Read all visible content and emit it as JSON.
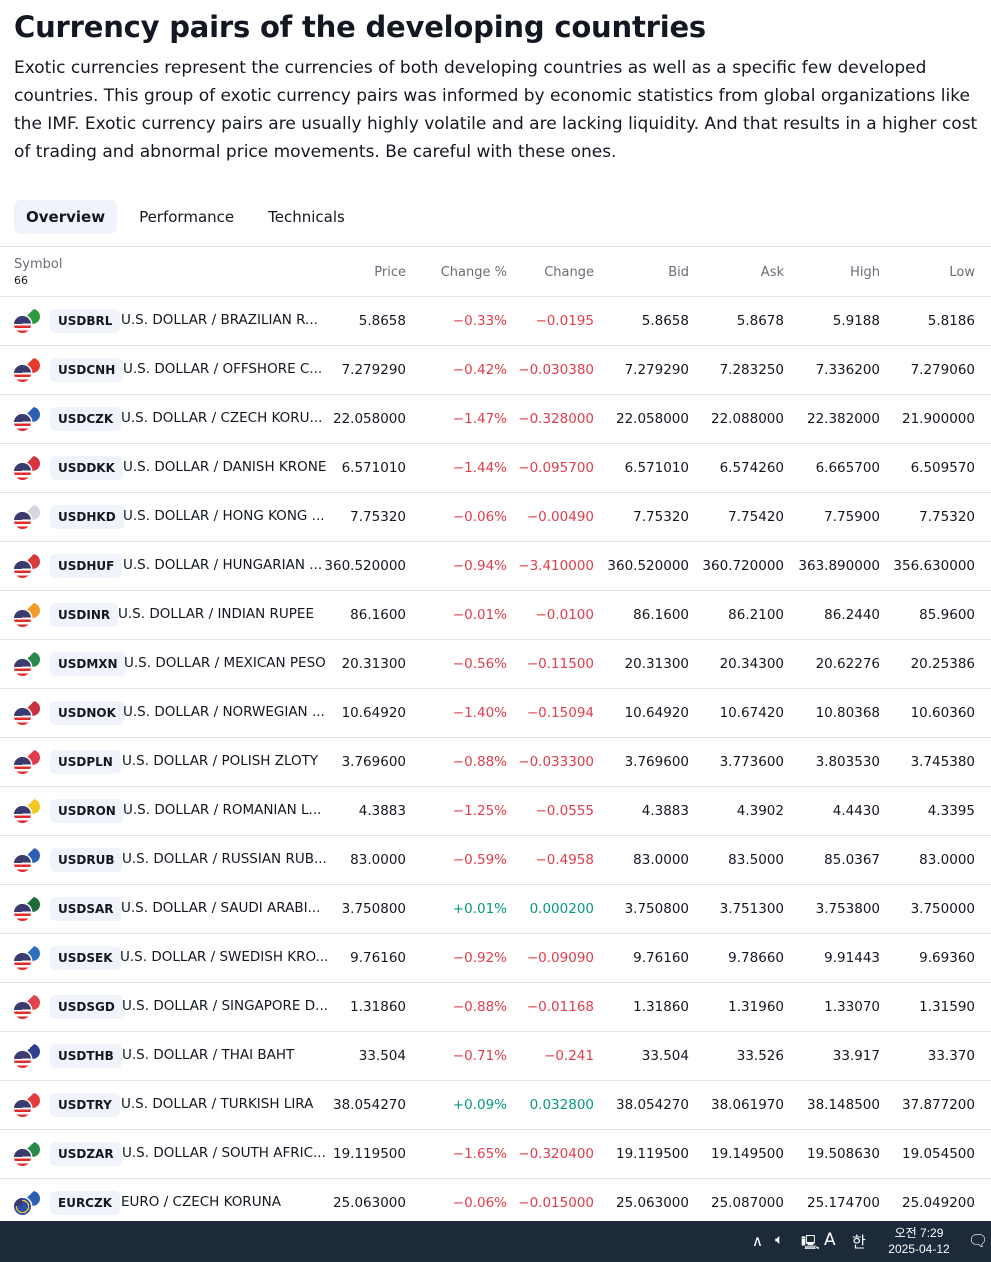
{
  "page": {
    "title": "Currency pairs of the developing countries",
    "description": "Exotic currencies represent the currencies of both developing countries as well as a specific few developed countries. This group of exotic currency pairs was informed by economic statistics from global organizations like the IMF. Exotic currency pairs are usually highly volatile and are lacking liquidity. And that results in a higher cost of trading and abnormal price movements. Be careful with these ones."
  },
  "tabs": [
    {
      "label": "Overview"
    },
    {
      "label": "Performance"
    },
    {
      "label": "Technicals"
    }
  ],
  "table": {
    "headers": {
      "symbol": "Symbol",
      "count": "66",
      "price": "Price",
      "change_pct": "Change %",
      "change": "Change",
      "bid": "Bid",
      "ask": "Ask",
      "high": "High",
      "low": "Low"
    },
    "rows": [
      {
        "ticker": "USDBRL",
        "name": "U.S. DOLLAR / BRAZILIAN R...",
        "price": "5.8658",
        "change_pct": "−0.33%",
        "change": "−0.0195",
        "bid": "5.8658",
        "ask": "5.8678",
        "high": "5.9188",
        "low": "5.8186",
        "dir": "neg",
        "flag_color": "#2a9a3f"
      },
      {
        "ticker": "USDCNH",
        "name": "U.S. DOLLAR / OFFSHORE C...",
        "price": "7.279290",
        "change_pct": "−0.42%",
        "change": "−0.030380",
        "bid": "7.279290",
        "ask": "7.283250",
        "high": "7.336200",
        "low": "7.279060",
        "dir": "neg",
        "flag_color": "#e63a2e"
      },
      {
        "ticker": "USDCZK",
        "name": "U.S. DOLLAR / CZECH KORU...",
        "price": "22.058000",
        "change_pct": "−1.47%",
        "change": "−0.328000",
        "bid": "22.058000",
        "ask": "22.088000",
        "high": "22.382000",
        "low": "21.900000",
        "dir": "neg",
        "flag_color": "#2d5fb5"
      },
      {
        "ticker": "USDDKK",
        "name": "U.S. DOLLAR / DANISH KRONE",
        "price": "6.571010",
        "change_pct": "−1.44%",
        "change": "−0.095700",
        "bid": "6.571010",
        "ask": "6.574260",
        "high": "6.665700",
        "low": "6.509570",
        "dir": "neg",
        "flag_color": "#d8343d"
      },
      {
        "ticker": "USDHKD",
        "name": "U.S. DOLLAR / HONG KONG ...",
        "price": "7.75320",
        "change_pct": "−0.06%",
        "change": "−0.00490",
        "bid": "7.75320",
        "ask": "7.75420",
        "high": "7.75900",
        "low": "7.75320",
        "dir": "neg",
        "flag_color": "#d4d7dd"
      },
      {
        "ticker": "USDHUF",
        "name": "U.S. DOLLAR / HUNGARIAN ...",
        "price": "360.520000",
        "change_pct": "−0.94%",
        "change": "−3.410000",
        "bid": "360.520000",
        "ask": "360.720000",
        "high": "363.890000",
        "low": "356.630000",
        "dir": "neg",
        "flag_color": "#d83a3a"
      },
      {
        "ticker": "USDINR",
        "name": "U.S. DOLLAR / INDIAN RUPEE",
        "price": "86.1600",
        "change_pct": "−0.01%",
        "change": "−0.0100",
        "bid": "86.1600",
        "ask": "86.2100",
        "high": "86.2440",
        "low": "85.9600",
        "dir": "neg",
        "flag_color": "#f39a2a"
      },
      {
        "ticker": "USDMXN",
        "name": "U.S. DOLLAR / MEXICAN PESO",
        "price": "20.31300",
        "change_pct": "−0.56%",
        "change": "−0.11500",
        "bid": "20.31300",
        "ask": "20.34300",
        "high": "20.62276",
        "low": "20.25386",
        "dir": "neg",
        "flag_color": "#2a8a4a"
      },
      {
        "ticker": "USDNOK",
        "name": "U.S. DOLLAR / NORWEGIAN ...",
        "price": "10.64920",
        "change_pct": "−1.40%",
        "change": "−0.15094",
        "bid": "10.64920",
        "ask": "10.67420",
        "high": "10.80368",
        "low": "10.60360",
        "dir": "neg",
        "flag_color": "#c8333f"
      },
      {
        "ticker": "USDPLN",
        "name": "U.S. DOLLAR / POLISH ZLOTY",
        "price": "3.769600",
        "change_pct": "−0.88%",
        "change": "−0.033300",
        "bid": "3.769600",
        "ask": "3.773600",
        "high": "3.803530",
        "low": "3.745380",
        "dir": "neg",
        "flag_color": "#e23b4a"
      },
      {
        "ticker": "USDRON",
        "name": "U.S. DOLLAR / ROMANIAN L...",
        "price": "4.3883",
        "change_pct": "−1.25%",
        "change": "−0.0555",
        "bid": "4.3883",
        "ask": "4.3902",
        "high": "4.4430",
        "low": "4.3395",
        "dir": "neg",
        "flag_color": "#f4c820"
      },
      {
        "ticker": "USDRUB",
        "name": "U.S. DOLLAR / RUSSIAN RUB...",
        "price": "83.0000",
        "change_pct": "−0.59%",
        "change": "−0.4958",
        "bid": "83.0000",
        "ask": "83.5000",
        "high": "85.0367",
        "low": "83.0000",
        "dir": "neg",
        "flag_color": "#2d5fb5"
      },
      {
        "ticker": "USDSAR",
        "name": "U.S. DOLLAR / SAUDI ARABI...",
        "price": "3.750800",
        "change_pct": "+0.01%",
        "change": "0.000200",
        "bid": "3.750800",
        "ask": "3.751300",
        "high": "3.753800",
        "low": "3.750000",
        "dir": "pos",
        "flag_color": "#1e6b3a"
      },
      {
        "ticker": "USDSEK",
        "name": "U.S. DOLLAR / SWEDISH KRO...",
        "price": "9.76160",
        "change_pct": "−0.92%",
        "change": "−0.09090",
        "bid": "9.76160",
        "ask": "9.78660",
        "high": "9.91443",
        "low": "9.69360",
        "dir": "neg",
        "flag_color": "#2f6fbf"
      },
      {
        "ticker": "USDSGD",
        "name": "U.S. DOLLAR / SINGAPORE D...",
        "price": "1.31860",
        "change_pct": "−0.88%",
        "change": "−0.01168",
        "bid": "1.31860",
        "ask": "1.31960",
        "high": "1.33070",
        "low": "1.31590",
        "dir": "neg",
        "flag_color": "#e2434d"
      },
      {
        "ticker": "USDTHB",
        "name": "U.S. DOLLAR / THAI BAHT",
        "price": "33.504",
        "change_pct": "−0.71%",
        "change": "−0.241",
        "bid": "33.504",
        "ask": "33.526",
        "high": "33.917",
        "low": "33.370",
        "dir": "neg",
        "flag_color": "#2d3f8f"
      },
      {
        "ticker": "USDTRY",
        "name": "U.S. DOLLAR / TURKISH LIRA",
        "price": "38.054270",
        "change_pct": "+0.09%",
        "change": "0.032800",
        "bid": "38.054270",
        "ask": "38.061970",
        "high": "38.148500",
        "low": "37.877200",
        "dir": "pos",
        "flag_color": "#e23b3b"
      },
      {
        "ticker": "USDZAR",
        "name": "U.S. DOLLAR / SOUTH AFRIC...",
        "price": "19.119500",
        "change_pct": "−1.65%",
        "change": "−0.320400",
        "bid": "19.119500",
        "ask": "19.149500",
        "high": "19.508630",
        "low": "19.054500",
        "dir": "neg",
        "flag_color": "#2a8a4a"
      },
      {
        "ticker": "EURCZK",
        "name": "EURO / CZECH KORUNA",
        "price": "25.063000",
        "change_pct": "−0.06%",
        "change": "−0.015000",
        "bid": "25.063000",
        "ask": "25.087000",
        "high": "25.174700",
        "low": "25.049200",
        "dir": "neg",
        "flag_color": "#2d5fb5",
        "base": "eur"
      }
    ]
  },
  "taskbar": {
    "time": "오전 7:29",
    "date": "2025-04-12",
    "ime_mode": "A",
    "ime_lang": "한",
    "icons": [
      "chevron-up-icon",
      "volume-icon",
      "network-icon",
      "notification-icon"
    ]
  }
}
